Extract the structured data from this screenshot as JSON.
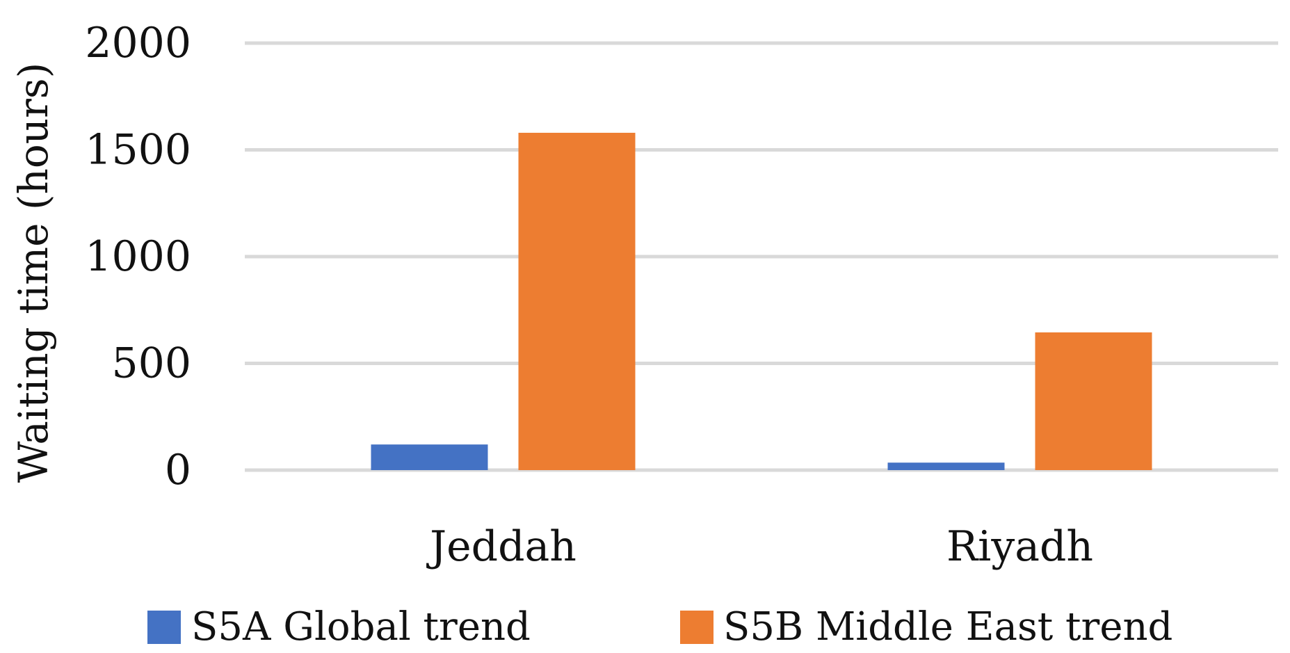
{
  "chart_data": {
    "type": "bar",
    "title": "",
    "xlabel": "",
    "ylabel": "Waiting time (hours)",
    "categories": [
      "Jeddah",
      "Riyadh"
    ],
    "series": [
      {
        "name": "S5A Global trend",
        "color": "#4472C4",
        "values": [
          120,
          35
        ]
      },
      {
        "name": "S5B Middle East trend",
        "color": "#ED7D31",
        "values": [
          1580,
          645
        ]
      }
    ],
    "ylim": [
      0,
      2000
    ],
    "yticks": [
      0,
      500,
      1000,
      1500,
      2000
    ],
    "grid": true,
    "legend_position": "bottom"
  }
}
